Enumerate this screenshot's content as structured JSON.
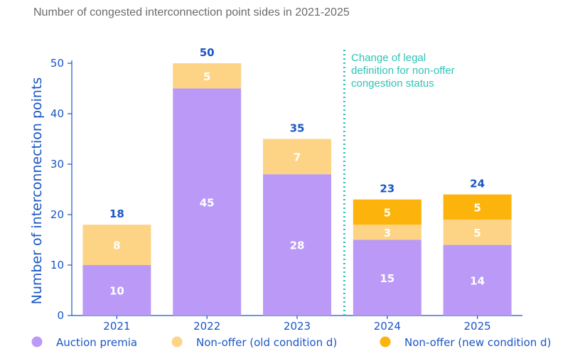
{
  "chart_data": {
    "type": "bar",
    "stacked": true,
    "title": "Number of congested interconnection point sides in 2021-2025",
    "xlabel": "",
    "ylabel": "Number of interconnection points",
    "ylim": [
      0,
      50
    ],
    "yticks": [
      0,
      10,
      20,
      30,
      40,
      50
    ],
    "grid": false,
    "legend": "bottom",
    "categories": [
      "2021",
      "2022",
      "2023",
      "2024",
      "2025"
    ],
    "series": [
      {
        "name": "Auction premia",
        "color": "#bb9af7",
        "values": [
          10,
          45,
          28,
          15,
          14
        ]
      },
      {
        "name": "Non-offer (old condition d)",
        "color": "#fdd485",
        "values": [
          8,
          5,
          7,
          3,
          5
        ]
      },
      {
        "name": "Non-offer (new condition d)",
        "color": "#fcb40c",
        "values": [
          0,
          0,
          0,
          5,
          5
        ]
      }
    ],
    "totals": [
      18,
      50,
      35,
      23,
      24
    ],
    "annotation": {
      "text_lines": [
        "Change of legal",
        "definition for non-offer",
        "congestion status"
      ],
      "after_category": "2023",
      "color": "#2ec4b6"
    },
    "colors": {
      "axis": "#1a56c4",
      "title": "#6b6b6b"
    }
  }
}
